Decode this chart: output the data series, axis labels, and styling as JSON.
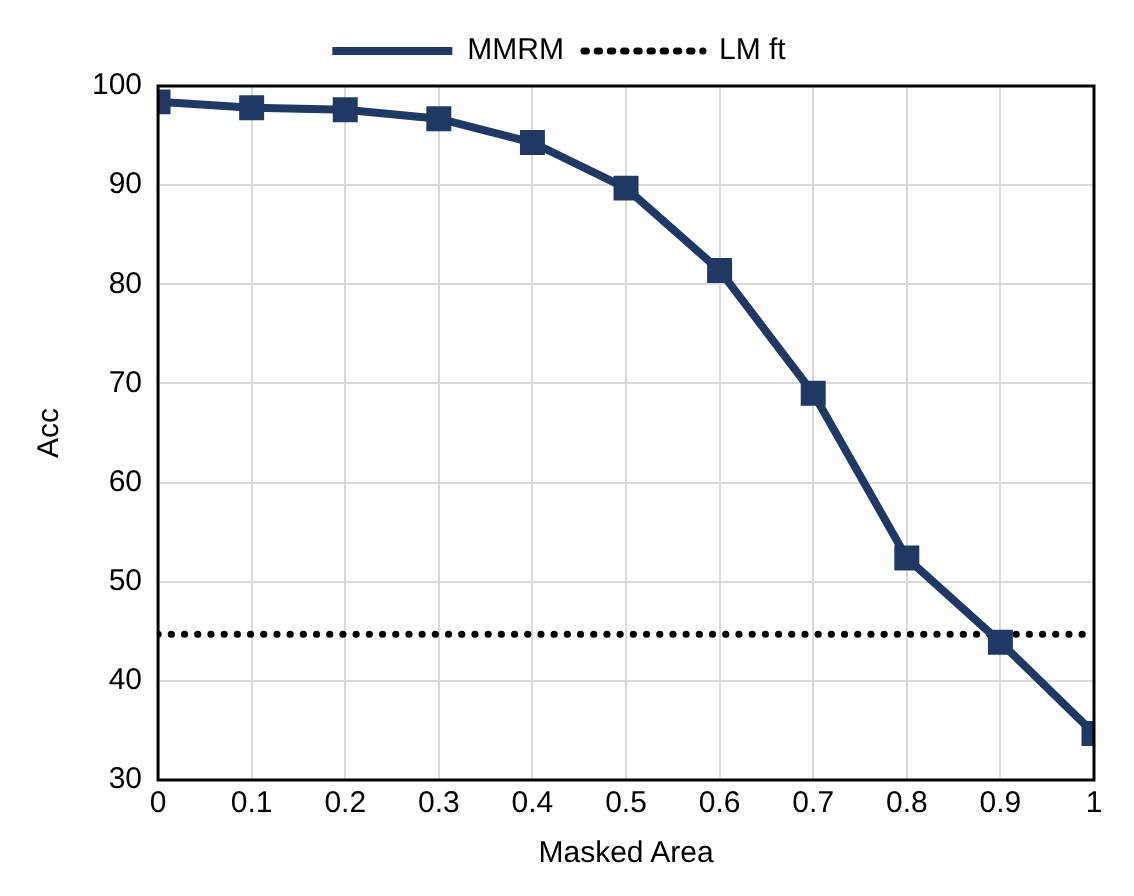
{
  "chart_data": {
    "type": "line",
    "xlabel": "Masked Area",
    "ylabel": "Acc",
    "x": [
      0,
      0.1,
      0.2,
      0.3,
      0.4,
      0.5,
      0.6,
      0.7,
      0.8,
      0.9,
      1
    ],
    "series": [
      {
        "name": "MMRM",
        "color": "#203864",
        "values": [
          98.4,
          97.8,
          97.6,
          96.7,
          94.3,
          89.7,
          81.4,
          69.0,
          52.4,
          43.9,
          34.7
        ],
        "marker": "square",
        "line_style": "solid"
      },
      {
        "name": "LM ft",
        "color": "#000000",
        "x": [
          0,
          1
        ],
        "values": [
          44.7,
          44.7
        ],
        "marker": "none",
        "line_style": "dotted"
      }
    ],
    "xlim": [
      0,
      1
    ],
    "xticks": [
      0,
      0.1,
      0.2,
      0.3,
      0.4,
      0.5,
      0.6,
      0.7,
      0.8,
      0.9,
      1
    ],
    "ylim": [
      30,
      100
    ],
    "yticks": [
      30,
      40,
      50,
      60,
      70,
      80,
      90,
      100
    ],
    "grid": true,
    "legend": "top"
  }
}
